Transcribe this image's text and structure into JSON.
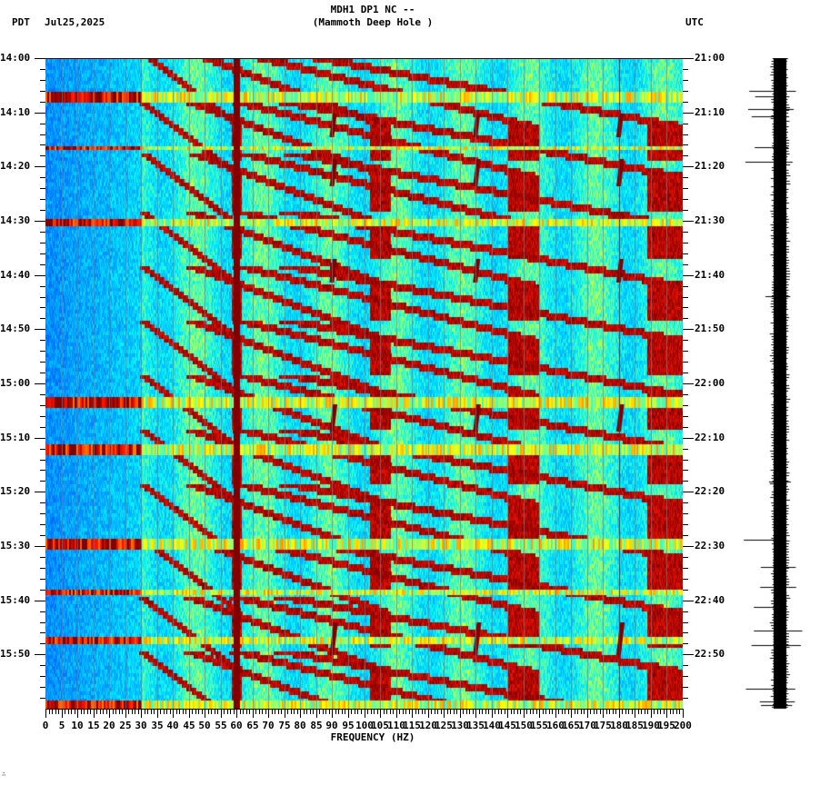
{
  "header": {
    "station_line": "MDH1 DP1 NC --",
    "location_line": "(Mammoth Deep Hole )",
    "left_timezone": "PDT",
    "date": "Jul25,2025",
    "right_timezone": "UTC"
  },
  "footer": {
    "corner_mark": "∴"
  },
  "chart_data": {
    "type": "heatmap",
    "title": "MDH1 DP1 NC -- (Mammoth Deep Hole ) spectrogram, Jul25,2025",
    "xlabel": "FREQUENCY (HZ)",
    "ylabel_left": "PDT",
    "ylabel_right": "UTC",
    "xlim": [
      0,
      200
    ],
    "x_ticks": [
      "0",
      "5",
      "10",
      "15",
      "20",
      "25",
      "30",
      "35",
      "40",
      "45",
      "50",
      "55",
      "60",
      "65",
      "70",
      "75",
      "80",
      "85",
      "90",
      "95",
      "100",
      "105",
      "110",
      "115",
      "120",
      "125",
      "130",
      "135",
      "140",
      "145",
      "150",
      "155",
      "160",
      "165",
      "170",
      "175",
      "180",
      "185",
      "190",
      "195",
      "200"
    ],
    "y_ticks_left": [
      "14:00",
      "14:10",
      "14:20",
      "14:30",
      "14:40",
      "14:50",
      "15:00",
      "15:10",
      "15:20",
      "15:30",
      "15:40",
      "15:50"
    ],
    "y_ticks_right": [
      "21:00",
      "21:10",
      "21:20",
      "21:30",
      "21:40",
      "21:50",
      "22:00",
      "22:10",
      "22:20",
      "22:30",
      "22:40",
      "22:50"
    ],
    "time_span_minutes": 120,
    "colormap": [
      "#0050ff",
      "#00a0ff",
      "#00f0ff",
      "#60ff a0",
      "#ffff00",
      "#ff8000",
      "#ff0000",
      "#800000"
    ],
    "grid": "vertical gray lines every 5 Hz",
    "features": {
      "constant_line_hz": 60,
      "weak_line_hz": 180,
      "low_freq_band_hz": [
        0,
        30
      ],
      "low_freq_level": "low (blue)",
      "high_freq_level": "moderate (cyan/yellow)",
      "strong_horizontal_bands_pdt": [
        "14:08",
        "14:19",
        "15:05",
        "15:11",
        "15:29",
        "15:46",
        "15:58"
      ],
      "chirp_events_pdt": [
        "14:08",
        "14:18",
        "14:40",
        "15:07",
        "15:30",
        "15:50"
      ],
      "chirp_events_hz": [
        45,
        90,
        135,
        180
      ]
    },
    "seismogram_trace": {
      "position": "right of spectrogram",
      "large_spikes_pdt": [
        "14:06",
        "14:19",
        "15:29",
        "15:45",
        "15:58"
      ]
    }
  }
}
